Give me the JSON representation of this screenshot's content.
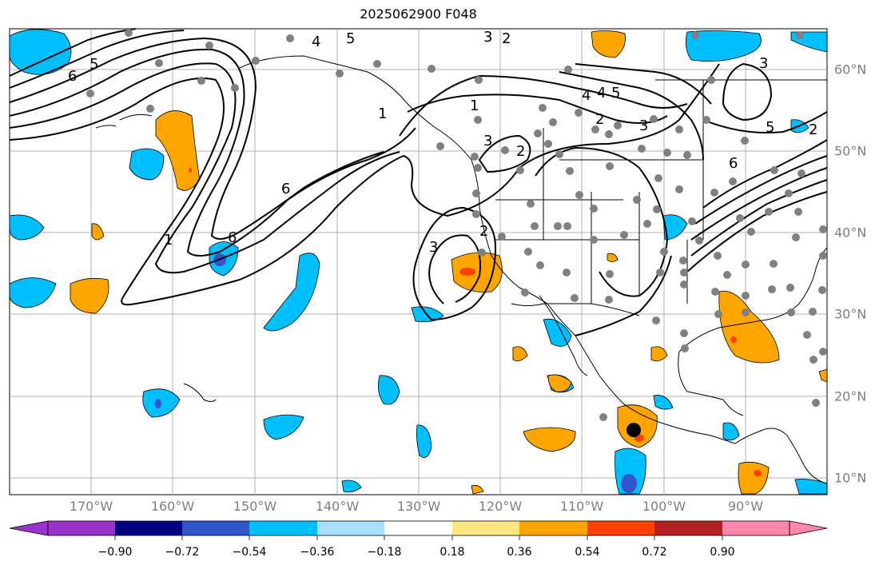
{
  "title": "2025062900 F048",
  "lon_ticks": [
    "170°W",
    "160°W",
    "150°W",
    "140°W",
    "130°W",
    "120°W",
    "110°W",
    "100°W",
    "90°W"
  ],
  "lat_ticks": [
    "60°N",
    "50°N",
    "40°N",
    "30°N",
    "20°N",
    "10°N"
  ],
  "colorbar": {
    "labels": [
      "−0.90",
      "−0.72",
      "−0.54",
      "−0.36",
      "−0.18",
      "0.18",
      "0.36",
      "0.54",
      "0.72",
      "0.90"
    ],
    "colors": [
      "#9933cc",
      "#000080",
      "#3355cc",
      "#00bfff",
      "#aae0ff",
      "#ffffff",
      "#ffe680",
      "#ffa500",
      "#ff4000",
      "#b22222",
      "#ff88aa"
    ]
  },
  "contour_labels": [
    "1",
    "2",
    "3",
    "4",
    "5",
    "6",
    "6",
    "5",
    "4",
    "3",
    "2",
    "1",
    "1",
    "2",
    "3",
    "3",
    "4",
    "5",
    "6",
    "2",
    "3",
    "5",
    "6",
    "2",
    "3",
    "4",
    "5",
    "6"
  ],
  "colors": {
    "positive_fill": "#ffa500",
    "negative_fill": "#00bfff",
    "strong_positive": "#ff4000",
    "strong_negative": "#3355cc",
    "station_dot": "#808080",
    "grid": "#b0b0b0"
  }
}
